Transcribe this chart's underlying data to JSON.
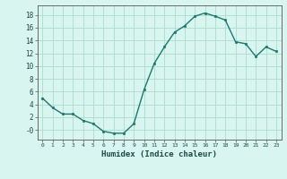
{
  "x": [
    0,
    1,
    2,
    3,
    4,
    5,
    6,
    7,
    8,
    9,
    10,
    11,
    12,
    13,
    14,
    15,
    16,
    17,
    18,
    19,
    20,
    21,
    22,
    23
  ],
  "y": [
    5.0,
    3.5,
    2.5,
    2.5,
    1.5,
    1.0,
    -0.2,
    -0.5,
    -0.5,
    1.0,
    6.3,
    10.4,
    13.0,
    15.3,
    16.3,
    17.8,
    18.3,
    17.8,
    17.2,
    13.8,
    13.5,
    11.5,
    13.0,
    12.3
  ],
  "line_color": "#1a7a6e",
  "marker": "s",
  "marker_size": 2.0,
  "bg_color": "#d8f5f0",
  "grid_color": "#aaddcc",
  "xlabel": "Humidex (Indice chaleur)",
  "ylim": [
    -1.5,
    19.5
  ],
  "xlim": [
    -0.5,
    23.5
  ],
  "yticks": [
    0,
    2,
    4,
    6,
    8,
    10,
    12,
    14,
    16,
    18
  ],
  "ytick_labels": [
    "-0",
    "2",
    "4",
    "6",
    "8",
    "10",
    "12",
    "14",
    "16",
    "18"
  ],
  "xticks": [
    0,
    1,
    2,
    3,
    4,
    5,
    6,
    7,
    8,
    9,
    10,
    11,
    12,
    13,
    14,
    15,
    16,
    17,
    18,
    19,
    20,
    21,
    22,
    23
  ]
}
